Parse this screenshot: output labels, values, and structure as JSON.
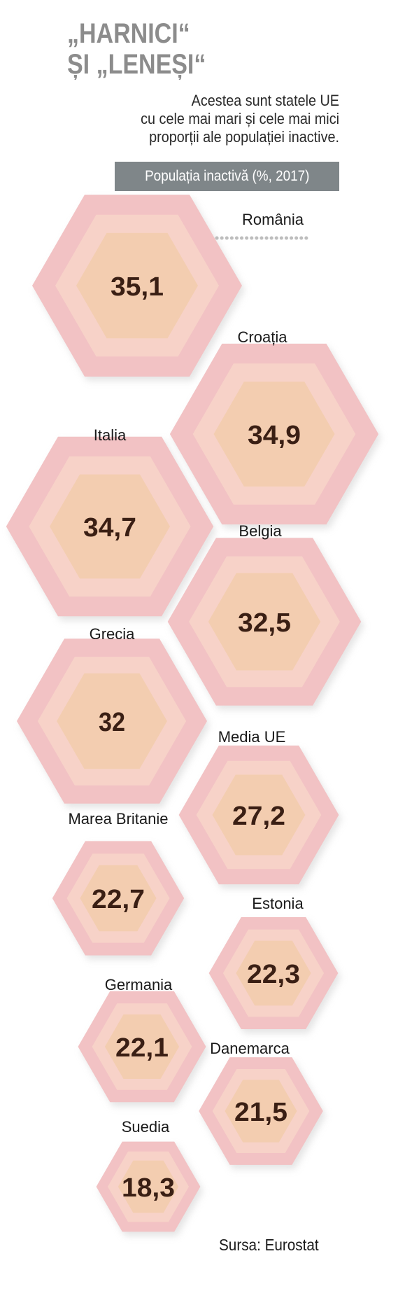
{
  "title_line1": "„HARNICI“",
  "title_line2": "ȘI „LENEȘI“",
  "subtitle_line1": "Acestea sunt statele UE",
  "subtitle_line2": "cu cele mai mari și cele mai mici",
  "subtitle_line3": "proporții ale populației inactive.",
  "unit_label": "Populația inactivă (%, 2017)",
  "source": "Sursa: Eurostat",
  "colors": {
    "outer": "#f2c2c4",
    "middle": "#f7d2c8",
    "inner": "#f3cdb0",
    "value_text": "#3a1f14",
    "badge": "#7f8689"
  },
  "chart_data": {
    "type": "bar",
    "mark": "hexagon",
    "categories": [
      "România",
      "Croația",
      "Italia",
      "Belgia",
      "Grecia",
      "Media UE",
      "Marea Britanie",
      "Estonia",
      "Germania",
      "Danemarca",
      "Suedia"
    ],
    "values": [
      35.1,
      34.9,
      34.7,
      32.5,
      32,
      27.2,
      22.7,
      22.3,
      22.1,
      21.5,
      18.3
    ],
    "value_labels": [
      "35,1",
      "34,9",
      "34,7",
      "32,5",
      "32",
      "27,2",
      "22,7",
      "22,3",
      "22,1",
      "21,5",
      "18,3"
    ]
  }
}
